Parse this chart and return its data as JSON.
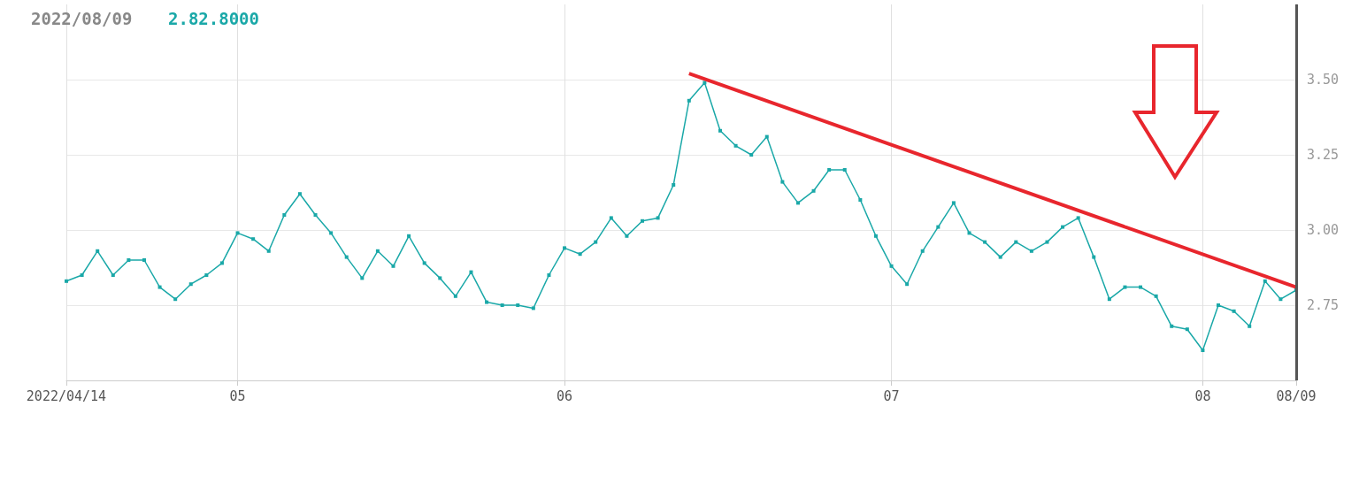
{
  "chart_data": {
    "type": "line",
    "title": "2022/08/09",
    "subtitle": "2.82.8000",
    "categories": [
      "2022/04/14",
      null,
      null,
      null,
      null,
      null,
      null,
      null,
      null,
      null,
      null,
      "05",
      null,
      null,
      null,
      null,
      null,
      null,
      null,
      null,
      null,
      null,
      null,
      null,
      null,
      null,
      null,
      null,
      null,
      null,
      null,
      null,
      "06",
      null,
      null,
      null,
      null,
      null,
      null,
      null,
      null,
      null,
      null,
      null,
      null,
      null,
      null,
      null,
      null,
      null,
      null,
      null,
      null,
      "07",
      null,
      null,
      null,
      null,
      null,
      null,
      null,
      null,
      null,
      null,
      null,
      null,
      null,
      null,
      null,
      null,
      null,
      null,
      null,
      "08",
      null,
      null,
      null,
      null,
      null,
      "08/09"
    ],
    "series": [
      {
        "color": "#1aa8a8",
        "marker": "square",
        "values": [
          2.83,
          2.85,
          2.93,
          2.85,
          2.9,
          2.9,
          2.81,
          2.77,
          2.82,
          2.85,
          2.89,
          2.99,
          2.97,
          2.93,
          3.05,
          3.12,
          3.05,
          2.99,
          2.91,
          2.84,
          2.93,
          2.88,
          2.98,
          2.89,
          2.84,
          2.78,
          2.86,
          2.76,
          2.75,
          2.75,
          2.74,
          2.85,
          2.94,
          2.92,
          2.96,
          3.04,
          2.98,
          3.03,
          3.04,
          3.15,
          3.43,
          3.49,
          3.33,
          3.28,
          3.25,
          3.31,
          3.16,
          3.09,
          3.13,
          3.2,
          3.2,
          3.1,
          2.98,
          2.88,
          2.82,
          2.93,
          3.01,
          3.09,
          2.99,
          2.96,
          2.91,
          2.96,
          2.93,
          2.96,
          3.01,
          3.04,
          2.91,
          2.77,
          2.81,
          2.81,
          2.78,
          2.68,
          2.67,
          2.6,
          2.75,
          2.73,
          2.68,
          2.83,
          2.77,
          2.8
        ]
      },
      {
        "color": "#e8262d",
        "marker": "none",
        "values": [
          null,
          null,
          null,
          null,
          null,
          null,
          null,
          null,
          null,
          null,
          null,
          null,
          null,
          null,
          null,
          null,
          null,
          null,
          null,
          null,
          null,
          null,
          null,
          null,
          null,
          null,
          null,
          null,
          null,
          null,
          null,
          null,
          null,
          null,
          null,
          null,
          null,
          null,
          null,
          null,
          3.52,
          null,
          null,
          null,
          null,
          null,
          null,
          null,
          null,
          null,
          null,
          null,
          null,
          null,
          null,
          null,
          null,
          null,
          null,
          null,
          null,
          null,
          null,
          null,
          null,
          null,
          null,
          null,
          null,
          null,
          null,
          null,
          null,
          null,
          null,
          null,
          null,
          null,
          null,
          2.81
        ]
      }
    ],
    "ylim": [
      2.5,
      3.75
    ],
    "yticks": [
      {
        "value": 2.75,
        "label": "2.75"
      },
      {
        "value": 3.0,
        "label": "3.00"
      },
      {
        "value": 3.25,
        "label": "3.25"
      },
      {
        "value": 3.5,
        "label": "3.50"
      }
    ],
    "grid": true,
    "ref_lines": [
      {
        "axis": "x",
        "value": "08/09",
        "color": "#555555"
      }
    ]
  }
}
